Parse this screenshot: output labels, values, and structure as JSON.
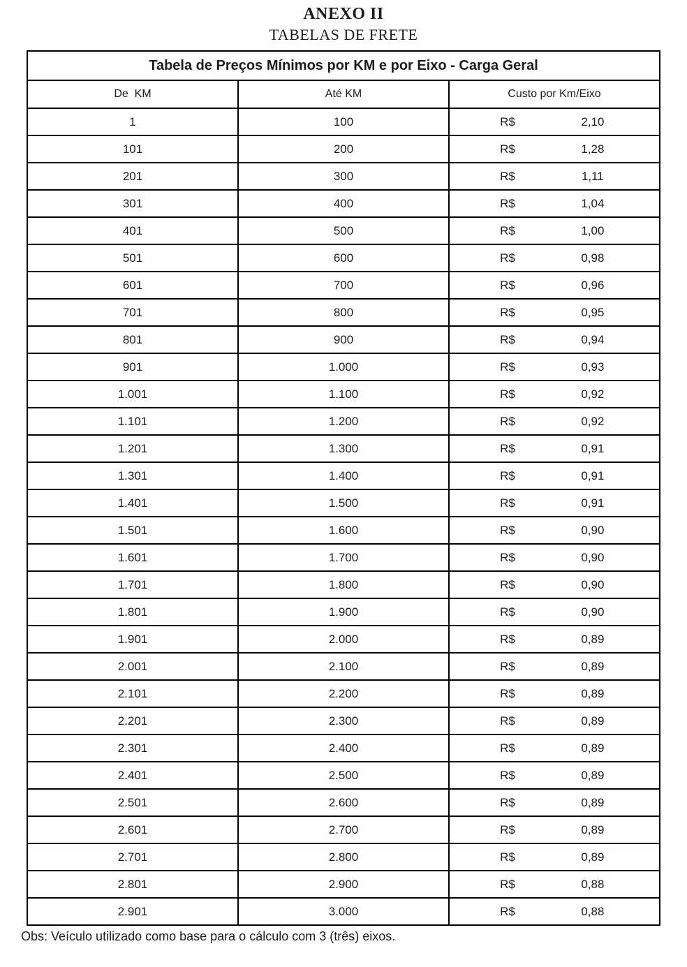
{
  "document": {
    "title": "ANEXO II",
    "subtitle": "TABELAS DE FRETE",
    "note": "Obs: Veículo utilizado como base para o cálculo com 3 (três) eixos."
  },
  "table": {
    "title": "Tabela de Preços Mínimos por KM e por Eixo - Carga Geral",
    "columns": {
      "de": "De  KM",
      "ate": "Até KM",
      "custo": "Custo por Km/Eixo"
    },
    "currency": "R$",
    "rows": [
      [
        "1",
        "100",
        "2,10"
      ],
      [
        "101",
        "200",
        "1,28"
      ],
      [
        "201",
        "300",
        "1,11"
      ],
      [
        "301",
        "400",
        "1,04"
      ],
      [
        "401",
        "500",
        "1,00"
      ],
      [
        "501",
        "600",
        "0,98"
      ],
      [
        "601",
        "700",
        "0,96"
      ],
      [
        "701",
        "800",
        "0,95"
      ],
      [
        "801",
        "900",
        "0,94"
      ],
      [
        "901",
        "1.000",
        "0,93"
      ],
      [
        "1.001",
        "1.100",
        "0,92"
      ],
      [
        "1.101",
        "1.200",
        "0,92"
      ],
      [
        "1.201",
        "1.300",
        "0,91"
      ],
      [
        "1.301",
        "1.400",
        "0,91"
      ],
      [
        "1.401",
        "1.500",
        "0,91"
      ],
      [
        "1.501",
        "1.600",
        "0,90"
      ],
      [
        "1.601",
        "1.700",
        "0,90"
      ],
      [
        "1.701",
        "1.800",
        "0,90"
      ],
      [
        "1.801",
        "1.900",
        "0,90"
      ],
      [
        "1.901",
        "2.000",
        "0,89"
      ],
      [
        "2.001",
        "2.100",
        "0,89"
      ],
      [
        "2.101",
        "2.200",
        "0,89"
      ],
      [
        "2.201",
        "2.300",
        "0,89"
      ],
      [
        "2.301",
        "2.400",
        "0,89"
      ],
      [
        "2.401",
        "2.500",
        "0,89"
      ],
      [
        "2.501",
        "2.600",
        "0,89"
      ],
      [
        "2.601",
        "2.700",
        "0,89"
      ],
      [
        "2.701",
        "2.800",
        "0,89"
      ],
      [
        "2.801",
        "2.900",
        "0,88"
      ],
      [
        "2.901",
        "3.000",
        "0,88"
      ]
    ]
  }
}
